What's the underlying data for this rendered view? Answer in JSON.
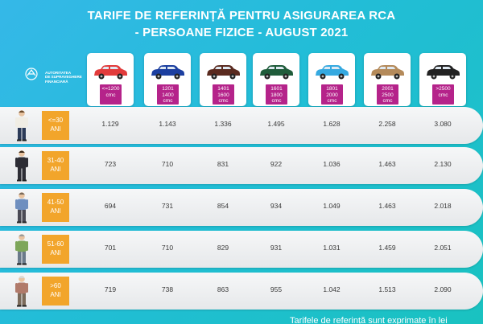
{
  "title": {
    "line1": "TARIFE DE REFERINȚĂ PENTRU ASIGURAREA RCA",
    "line2": "- PERSOANE FIZICE - AUGUST 2021"
  },
  "logo": {
    "line1": "AUTORITATEA",
    "line2": "DE SUPRAVEGHERE",
    "line3": "FINANCIARĂ"
  },
  "cars": [
    {
      "l1": "<=1200",
      "l2": "",
      "l3": "cmc",
      "color": "#e23b3b",
      "icon": "hatchback-car-icon"
    },
    {
      "l1": "1201",
      "l2": "1400",
      "l3": "cmc",
      "color": "#1c3fa0",
      "icon": "compact-car-icon"
    },
    {
      "l1": "1401",
      "l2": "1600",
      "l3": "cmc",
      "color": "#5a2a1f",
      "icon": "sedan-car-icon"
    },
    {
      "l1": "1601",
      "l2": "1800",
      "l3": "cmc",
      "color": "#1f5c3a",
      "icon": "station-wagon-icon"
    },
    {
      "l1": "1801",
      "l2": "2000",
      "l3": "cmc",
      "color": "#35a9e0",
      "icon": "coupe-car-icon"
    },
    {
      "l1": "2001",
      "l2": "2500",
      "l3": "cmc",
      "color": "#b48a5a",
      "icon": "suv-car-icon"
    },
    {
      "l1": ">2500",
      "l2": "",
      "l3": "cmc",
      "color": "#222222",
      "icon": "convertible-car-icon"
    }
  ],
  "rows": [
    {
      "age1": "<=30",
      "age2": "ANI",
      "values": [
        "1.129",
        "1.143",
        "1.336",
        "1.495",
        "1.628",
        "2.258",
        "3.080"
      ],
      "shirt": "#f0ede4",
      "pants": "#2b3a58",
      "hair": "#6a4a2a"
    },
    {
      "age1": "31-40",
      "age2": "ANI",
      "values": [
        "723",
        "710",
        "831",
        "922",
        "1.036",
        "1.463",
        "2.130"
      ],
      "shirt": "#2d2d35",
      "pants": "#2d2d35",
      "hair": "#3a2a1a"
    },
    {
      "age1": "41-50",
      "age2": "ANI",
      "values": [
        "694",
        "731",
        "854",
        "934",
        "1.049",
        "1.463",
        "2.018"
      ],
      "shirt": "#6f8fbf",
      "pants": "#4a4a55",
      "hair": "#7a6a5a"
    },
    {
      "age1": "51-60",
      "age2": "ANI",
      "values": [
        "701",
        "710",
        "829",
        "931",
        "1.031",
        "1.459",
        "2.051"
      ],
      "shirt": "#7da65a",
      "pants": "#6a7a8a",
      "hair": "#9a9a9a"
    },
    {
      "age1": ">60",
      "age2": "ANI",
      "values": [
        "719",
        "738",
        "863",
        "955",
        "1.042",
        "1.513",
        "2.090"
      ],
      "shirt": "#b07a6a",
      "pants": "#7a6a5a",
      "hair": "#d8d8d8"
    }
  ],
  "footnote": "Tarifele de referință sunt exprimate în lei"
}
